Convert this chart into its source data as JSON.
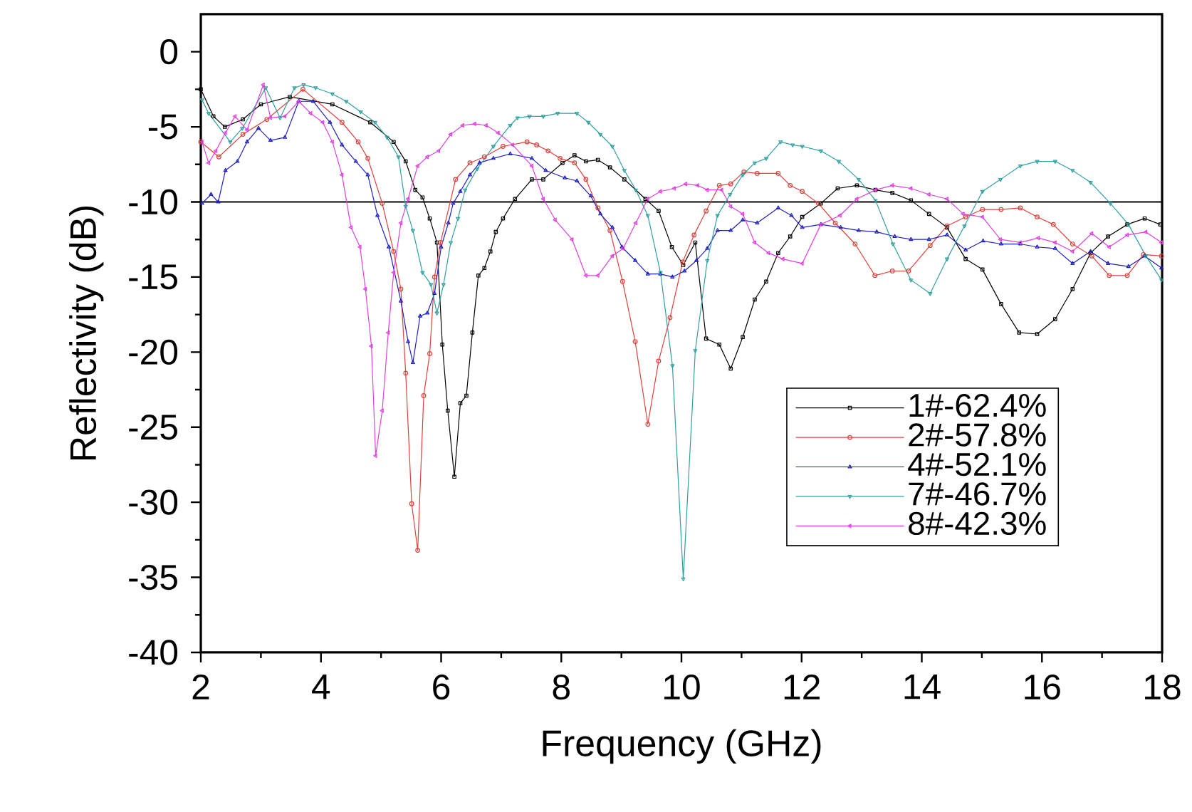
{
  "chart_data": {
    "type": "line",
    "xlabel": "Frequency (GHz)",
    "ylabel": "Reflectivity (dB)",
    "xlim": [
      2,
      18
    ],
    "ylim": [
      -40,
      2.5
    ],
    "xticks": [
      2,
      4,
      6,
      8,
      10,
      12,
      14,
      16,
      18
    ],
    "yticks": [
      0,
      -5,
      -10,
      -15,
      -20,
      -25,
      -30,
      -35,
      -40
    ],
    "legend": "bottom right",
    "grid": false,
    "ref_lines": [
      {
        "axis": "y",
        "value": -10,
        "color": "#000000"
      }
    ],
    "series": [
      {
        "name": "1#-62.4%",
        "color": "#000000",
        "marker": "square",
        "x": [
          2.0,
          2.21,
          2.4,
          2.7,
          3.0,
          3.48,
          4.19,
          4.82,
          5.21,
          5.41,
          5.57,
          5.69,
          5.81,
          5.93,
          6.02,
          6.11,
          6.22,
          6.32,
          6.42,
          6.52,
          6.62,
          6.72,
          6.82,
          6.91,
          7.03,
          7.23,
          7.51,
          7.7,
          8.02,
          8.22,
          8.41,
          8.61,
          8.81,
          9.05,
          9.4,
          9.62,
          9.84,
          10.03,
          10.23,
          10.41,
          10.63,
          10.82,
          11.02,
          11.22,
          11.41,
          11.61,
          11.81,
          12.01,
          12.32,
          12.6,
          12.92,
          13.23,
          13.51,
          13.82,
          14.12,
          14.42,
          14.73,
          15.01,
          15.32,
          15.62,
          15.92,
          16.22,
          16.51,
          16.81,
          17.1,
          17.42,
          17.71,
          17.97
        ],
        "values": [
          -2.5,
          -4.3,
          -5.0,
          -4.5,
          -3.5,
          -3.0,
          -3.5,
          -4.7,
          -6.0,
          -7.3,
          -9.2,
          -9.7,
          -11.1,
          -12.7,
          -19.5,
          -23.9,
          -28.3,
          -23.4,
          -22.9,
          -18.7,
          -14.9,
          -14.4,
          -13.3,
          -12.0,
          -11.1,
          -9.8,
          -8.5,
          -8.5,
          -7.4,
          -6.9,
          -7.3,
          -7.2,
          -7.7,
          -8.5,
          -9.8,
          -10.6,
          -13.0,
          -14.2,
          -12.7,
          -19.1,
          -19.5,
          -21.1,
          -19.0,
          -16.5,
          -15.3,
          -13.4,
          -12.3,
          -11.0,
          -10.1,
          -9.1,
          -8.9,
          -9.2,
          -9.4,
          -9.9,
          -10.8,
          -11.7,
          -13.8,
          -14.5,
          -16.8,
          -18.7,
          -18.8,
          -17.8,
          -15.8,
          -13.4,
          -12.3,
          -11.5,
          -11.1,
          -11.5
        ]
      },
      {
        "name": "2#-57.8%",
        "color": "#e0403a",
        "marker": "circle",
        "x": [
          2.0,
          2.3,
          2.7,
          3.1,
          3.7,
          4.35,
          4.62,
          4.78,
          5.02,
          5.21,
          5.33,
          5.41,
          5.51,
          5.61,
          5.71,
          5.81,
          5.89,
          5.99,
          6.24,
          6.48,
          6.72,
          7.03,
          7.43,
          7.59,
          7.78,
          7.98,
          8.22,
          8.41,
          8.61,
          8.81,
          9.02,
          9.23,
          9.44,
          9.62,
          9.81,
          10.02,
          10.21,
          10.41,
          10.63,
          10.82,
          11.04,
          11.26,
          11.61,
          11.81,
          12.01,
          12.28,
          12.56,
          12.89,
          13.22,
          13.51,
          13.78,
          14.14,
          14.42,
          14.73,
          15.01,
          15.32,
          15.64,
          15.92,
          16.19,
          16.51,
          16.83,
          17.12,
          17.42,
          17.69,
          17.99
        ],
        "values": [
          -6.0,
          -7.0,
          -5.5,
          -4.5,
          -2.5,
          -4.7,
          -6.0,
          -7.1,
          -10.1,
          -13.3,
          -15.8,
          -21.4,
          -30.1,
          -33.2,
          -22.9,
          -20.1,
          -15.0,
          -12.7,
          -8.5,
          -7.4,
          -7.0,
          -6.3,
          -6.0,
          -6.2,
          -6.6,
          -7.1,
          -7.4,
          -8.5,
          -10.4,
          -11.9,
          -15.3,
          -19.3,
          -24.8,
          -20.6,
          -17.7,
          -14.0,
          -12.2,
          -10.6,
          -8.9,
          -8.8,
          -8.0,
          -8.1,
          -8.1,
          -8.9,
          -9.3,
          -10.1,
          -11.4,
          -12.8,
          -14.9,
          -14.6,
          -14.6,
          -12.9,
          -11.6,
          -11.0,
          -10.5,
          -10.5,
          -10.4,
          -11.0,
          -11.5,
          -12.8,
          -13.6,
          -14.9,
          -14.9,
          -13.5,
          -13.6
        ]
      },
      {
        "name": "4#-52.1%",
        "color": "#2020c0",
        "marker": "triangle",
        "x": [
          2.02,
          2.17,
          2.29,
          2.41,
          2.61,
          2.77,
          2.96,
          3.16,
          3.4,
          3.63,
          3.87,
          4.15,
          4.35,
          4.58,
          4.78,
          4.94,
          5.13,
          5.33,
          5.45,
          5.53,
          5.65,
          5.77,
          5.89,
          6.0,
          6.12,
          6.2,
          6.32,
          6.48,
          6.64,
          6.87,
          7.15,
          7.51,
          7.74,
          8.06,
          8.26,
          8.49,
          8.65,
          8.85,
          9.01,
          9.23,
          9.44,
          9.65,
          9.85,
          10.05,
          10.25,
          10.43,
          10.6,
          10.82,
          11.02,
          11.26,
          11.61,
          11.83,
          12.01,
          12.32,
          12.65,
          12.95,
          13.25,
          13.55,
          13.82,
          14.12,
          14.42,
          14.73,
          15.02,
          15.32,
          15.64,
          15.92,
          16.22,
          16.51,
          16.81,
          17.1,
          17.44,
          17.71,
          17.99
        ],
        "values": [
          -10.1,
          -9.5,
          -10.0,
          -7.9,
          -7.3,
          -6.0,
          -5.1,
          -5.9,
          -5.7,
          -3.3,
          -3.3,
          -4.7,
          -6.2,
          -7.3,
          -8.2,
          -10.9,
          -13.0,
          -16.6,
          -19.3,
          -20.7,
          -17.6,
          -17.4,
          -16.1,
          -13.0,
          -11.4,
          -10.1,
          -9.3,
          -8.2,
          -7.4,
          -7.1,
          -6.8,
          -7.1,
          -7.9,
          -8.4,
          -8.6,
          -9.6,
          -10.8,
          -11.7,
          -13.0,
          -13.9,
          -14.8,
          -14.8,
          -15.0,
          -14.6,
          -13.9,
          -13.1,
          -11.9,
          -11.9,
          -11.2,
          -11.4,
          -10.4,
          -10.9,
          -11.7,
          -11.5,
          -11.7,
          -11.9,
          -12.0,
          -12.3,
          -12.5,
          -12.5,
          -12.2,
          -13.2,
          -12.6,
          -12.8,
          -12.8,
          -13.0,
          -13.1,
          -14.1,
          -13.3,
          -14.1,
          -14.3,
          -13.6,
          -14.4
        ]
      },
      {
        "name": "7#-46.7%",
        "color": "#30a0a0",
        "marker": "triangle-down",
        "x": [
          2.02,
          2.13,
          2.49,
          2.69,
          3.08,
          3.32,
          3.56,
          3.71,
          3.91,
          4.19,
          4.42,
          4.66,
          4.9,
          5.1,
          5.29,
          5.41,
          5.53,
          5.69,
          5.83,
          5.93,
          6.04,
          6.16,
          6.28,
          6.4,
          6.6,
          6.87,
          7.15,
          7.27,
          7.47,
          7.7,
          7.94,
          8.26,
          8.45,
          8.65,
          8.85,
          9.05,
          9.24,
          9.44,
          9.65,
          9.85,
          10.03,
          10.23,
          10.43,
          10.6,
          10.81,
          11.02,
          11.22,
          11.41,
          11.65,
          11.85,
          12.01,
          12.32,
          12.62,
          12.95,
          13.23,
          13.52,
          13.82,
          14.14,
          14.42,
          14.71,
          15.01,
          15.31,
          15.64,
          15.92,
          16.22,
          16.51,
          16.81,
          17.14,
          17.44,
          17.73,
          17.99
        ],
        "values": [
          -3.2,
          -4.1,
          -6.0,
          -5.1,
          -2.4,
          -4.4,
          -2.4,
          -2.2,
          -2.4,
          -2.8,
          -3.3,
          -4.0,
          -4.7,
          -5.7,
          -7.0,
          -10.3,
          -11.9,
          -14.7,
          -15.5,
          -17.4,
          -15.5,
          -12.7,
          -11.1,
          -9.2,
          -7.8,
          -6.3,
          -4.9,
          -4.4,
          -4.3,
          -4.3,
          -4.1,
          -4.1,
          -4.7,
          -5.5,
          -6.3,
          -7.9,
          -9.2,
          -10.9,
          -14.7,
          -20.9,
          -35.1,
          -19.9,
          -13.9,
          -10.9,
          -9.5,
          -8.2,
          -7.4,
          -7.1,
          -6.0,
          -6.2,
          -6.3,
          -6.6,
          -7.3,
          -8.5,
          -9.9,
          -12.8,
          -15.2,
          -16.1,
          -13.8,
          -11.6,
          -9.3,
          -8.5,
          -7.6,
          -7.3,
          -7.3,
          -7.9,
          -8.7,
          -10.1,
          -11.5,
          -13.6,
          -15.2
        ]
      },
      {
        "name": "8#-42.3%",
        "color": "#e040e0",
        "marker": "triangle-left",
        "x": [
          2.02,
          2.13,
          2.25,
          2.41,
          2.57,
          2.77,
          3.04,
          3.16,
          3.4,
          3.63,
          3.83,
          4.03,
          4.19,
          4.35,
          4.5,
          4.65,
          4.74,
          4.84,
          4.91,
          5.02,
          5.12,
          5.21,
          5.33,
          5.45,
          5.61,
          5.77,
          5.96,
          6.16,
          6.36,
          6.56,
          6.75,
          6.95,
          7.19,
          7.51,
          7.7,
          7.9,
          8.18,
          8.41,
          8.61,
          8.85,
          9.03,
          9.24,
          9.44,
          9.65,
          9.88,
          10.07,
          10.27,
          10.43,
          10.67,
          10.82,
          11.02,
          11.22,
          11.45,
          11.69,
          12.01,
          12.32,
          12.64,
          12.92,
          13.23,
          13.51,
          13.82,
          14.12,
          14.42,
          14.69,
          15.01,
          15.31,
          15.64,
          15.94,
          16.22,
          16.51,
          16.83,
          17.12,
          17.42,
          17.73,
          17.99
        ],
        "values": [
          -6.0,
          -7.4,
          -6.6,
          -5.4,
          -4.3,
          -5.2,
          -2.2,
          -4.4,
          -4.3,
          -3.3,
          -4.1,
          -4.7,
          -6.0,
          -8.2,
          -11.7,
          -13.0,
          -15.8,
          -19.6,
          -26.9,
          -23.9,
          -18.7,
          -14.7,
          -11.4,
          -9.8,
          -7.6,
          -7.0,
          -6.6,
          -5.5,
          -4.9,
          -4.8,
          -4.9,
          -5.4,
          -6.2,
          -7.6,
          -9.8,
          -11.2,
          -12.5,
          -14.9,
          -14.9,
          -13.6,
          -13.1,
          -11.4,
          -9.8,
          -9.3,
          -9.1,
          -8.8,
          -8.9,
          -9.2,
          -9.2,
          -10.3,
          -10.8,
          -12.7,
          -13.4,
          -13.8,
          -14.1,
          -11.5,
          -10.9,
          -9.8,
          -9.2,
          -8.9,
          -9.1,
          -9.5,
          -9.8,
          -10.8,
          -11.0,
          -12.5,
          -12.7,
          -12.4,
          -12.7,
          -13.3,
          -12.1,
          -13.0,
          -12.2,
          -12.0,
          -12.7
        ]
      }
    ]
  }
}
